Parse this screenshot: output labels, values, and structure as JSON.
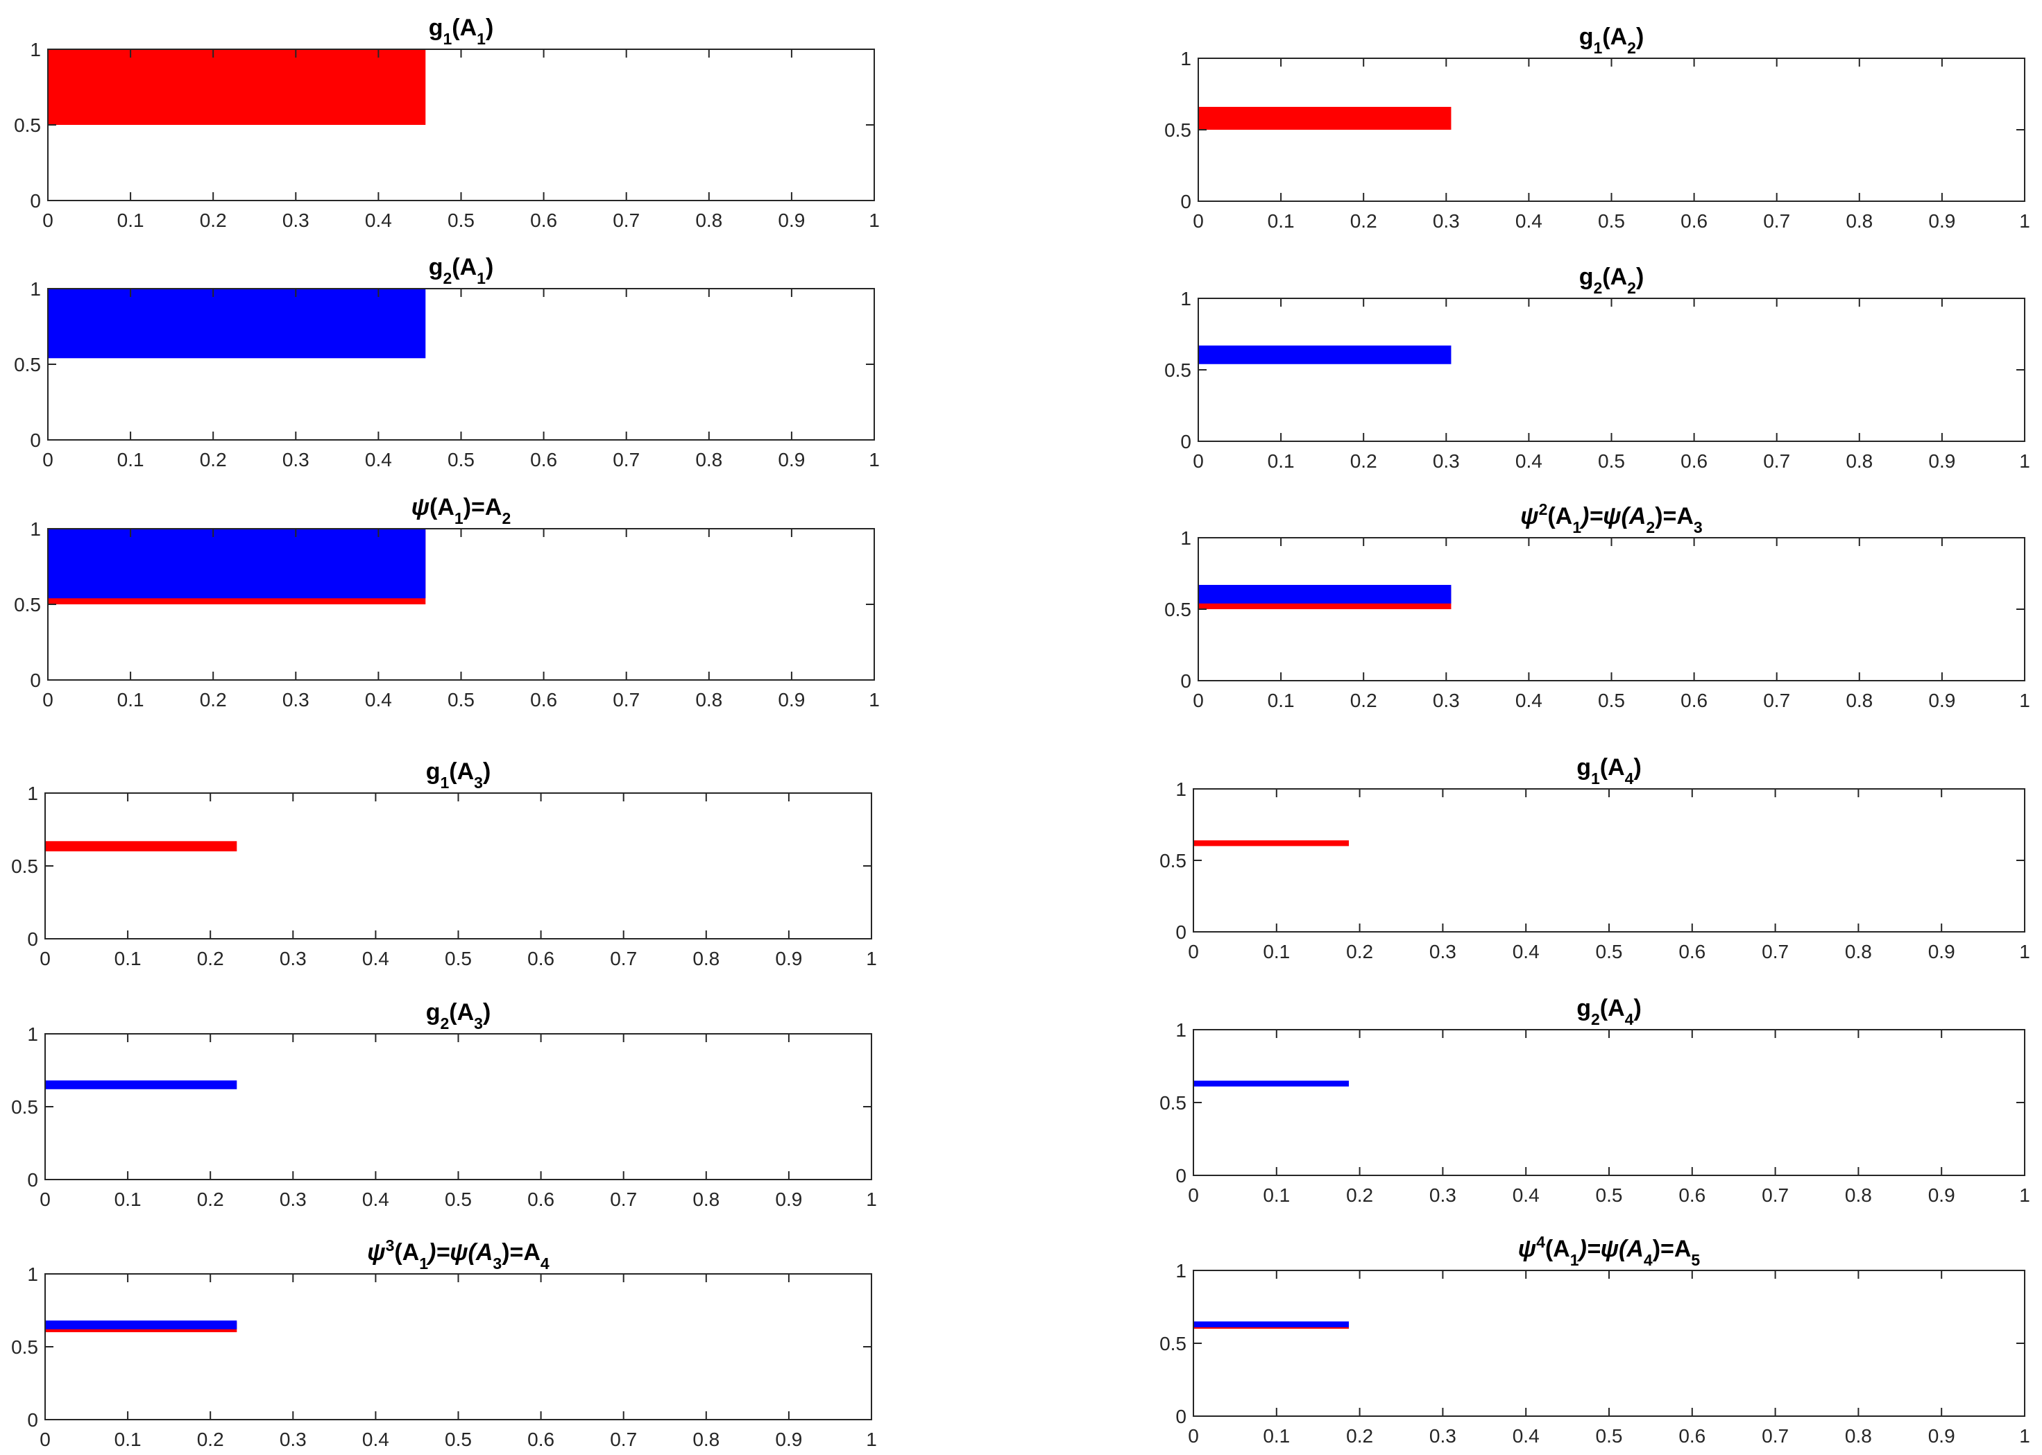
{
  "figure": {
    "colors": {
      "red": "#ff0000",
      "blue": "#0000ff",
      "axes": "#262626",
      "background": "#ffffff"
    }
  },
  "chart_data": [
    {
      "type": "area",
      "title": "g1(A1)",
      "title_parts": [
        "g",
        "1",
        "(A",
        "1",
        ")"
      ],
      "xlim": [
        0,
        1
      ],
      "ylim": [
        0,
        1
      ],
      "xticks": [
        "0",
        "0.1",
        "0.2",
        "0.3",
        "0.4",
        "0.5",
        "0.6",
        "0.7",
        "0.8",
        "0.9",
        "1"
      ],
      "yticks": [
        "0",
        "0.5",
        "1"
      ],
      "series": [
        {
          "color": "red",
          "x": [
            0,
            0.457
          ],
          "y": [
            0.5,
            1.0
          ]
        }
      ]
    },
    {
      "type": "area",
      "title": "g2(A1)",
      "title_parts": [
        "g",
        "2",
        "(A",
        "1",
        ")"
      ],
      "xlim": [
        0,
        1
      ],
      "ylim": [
        0,
        1
      ],
      "xticks": [
        "0",
        "0.1",
        "0.2",
        "0.3",
        "0.4",
        "0.5",
        "0.6",
        "0.7",
        "0.8",
        "0.9",
        "1"
      ],
      "yticks": [
        "0",
        "0.5",
        "1"
      ],
      "series": [
        {
          "color": "blue",
          "x": [
            0,
            0.457
          ],
          "y": [
            0.54,
            1.0
          ]
        }
      ]
    },
    {
      "type": "area",
      "title": "ψ(A1)=A2",
      "title_parts": [
        "ψ",
        "",
        "(A",
        "1",
        ")=A",
        "2",
        ""
      ],
      "xlim": [
        0,
        1
      ],
      "ylim": [
        0,
        1
      ],
      "xticks": [
        "0",
        "0.1",
        "0.2",
        "0.3",
        "0.4",
        "0.5",
        "0.6",
        "0.7",
        "0.8",
        "0.9",
        "1"
      ],
      "yticks": [
        "0",
        "0.5",
        "1"
      ],
      "series": [
        {
          "color": "red",
          "x": [
            0,
            0.457
          ],
          "y": [
            0.5,
            1.0
          ]
        },
        {
          "color": "blue",
          "x": [
            0,
            0.457
          ],
          "y": [
            0.54,
            1.0
          ]
        }
      ]
    },
    {
      "type": "area",
      "title": "g1(A3)",
      "title_parts": [
        "g",
        "1",
        "(A",
        "3",
        ")"
      ],
      "xlim": [
        0,
        1
      ],
      "ylim": [
        0,
        1
      ],
      "xticks": [
        "0",
        "0.1",
        "0.2",
        "0.3",
        "0.4",
        "0.5",
        "0.6",
        "0.7",
        "0.8",
        "0.9",
        "1"
      ],
      "yticks": [
        "0",
        "0.5",
        "1"
      ],
      "series": [
        {
          "color": "red",
          "x": [
            0,
            0.232
          ],
          "y": [
            0.6,
            0.67
          ]
        }
      ]
    },
    {
      "type": "area",
      "title": "g2(A3)",
      "title_parts": [
        "g",
        "2",
        "(A",
        "3",
        ")"
      ],
      "xlim": [
        0,
        1
      ],
      "ylim": [
        0,
        1
      ],
      "xticks": [
        "0",
        "0.1",
        "0.2",
        "0.3",
        "0.4",
        "0.5",
        "0.6",
        "0.7",
        "0.8",
        "0.9",
        "1"
      ],
      "yticks": [
        "0",
        "0.5",
        "1"
      ],
      "series": [
        {
          "color": "blue",
          "x": [
            0,
            0.232
          ],
          "y": [
            0.62,
            0.68
          ]
        }
      ]
    },
    {
      "type": "area",
      "title": "ψ3(A1)=ψ(A3)=A4",
      "title_parts": [
        "ψ",
        "3",
        "(A",
        "1",
        ")=ψ(A",
        "3",
        ")=A",
        "4",
        ""
      ],
      "xlim": [
        0,
        1
      ],
      "ylim": [
        0,
        1
      ],
      "xticks": [
        "0",
        "0.1",
        "0.2",
        "0.3",
        "0.4",
        "0.5",
        "0.6",
        "0.7",
        "0.8",
        "0.9",
        "1"
      ],
      "yticks": [
        "0",
        "0.5",
        "1"
      ],
      "series": [
        {
          "color": "red",
          "x": [
            0,
            0.232
          ],
          "y": [
            0.6,
            0.67
          ]
        },
        {
          "color": "blue",
          "x": [
            0,
            0.232
          ],
          "y": [
            0.62,
            0.68
          ]
        }
      ]
    },
    {
      "type": "area",
      "title": "g1(A2)",
      "title_parts": [
        "g",
        "1",
        "(A",
        "2",
        ")"
      ],
      "xlim": [
        0,
        1
      ],
      "ylim": [
        0,
        1
      ],
      "xticks": [
        "0",
        "0.1",
        "0.2",
        "0.3",
        "0.4",
        "0.5",
        "0.6",
        "0.7",
        "0.8",
        "0.9",
        "1"
      ],
      "yticks": [
        "0",
        "0.5",
        "1"
      ],
      "series": [
        {
          "color": "red",
          "x": [
            0,
            0.306
          ],
          "y": [
            0.5,
            0.66
          ]
        }
      ]
    },
    {
      "type": "area",
      "title": "g2(A2)",
      "title_parts": [
        "g",
        "2",
        "(A",
        "2",
        ")"
      ],
      "xlim": [
        0,
        1
      ],
      "ylim": [
        0,
        1
      ],
      "xticks": [
        "0",
        "0.1",
        "0.2",
        "0.3",
        "0.4",
        "0.5",
        "0.6",
        "0.7",
        "0.8",
        "0.9",
        "1"
      ],
      "yticks": [
        "0",
        "0.5",
        "1"
      ],
      "series": [
        {
          "color": "blue",
          "x": [
            0,
            0.306
          ],
          "y": [
            0.54,
            0.67
          ]
        }
      ]
    },
    {
      "type": "area",
      "title": "ψ2(A1)=ψ(A2)=A3",
      "title_parts": [
        "ψ",
        "2",
        "(A",
        "1",
        ")=ψ(A",
        "2",
        ")=A",
        "3",
        ""
      ],
      "xlim": [
        0,
        1
      ],
      "ylim": [
        0,
        1
      ],
      "xticks": [
        "0",
        "0.1",
        "0.2",
        "0.3",
        "0.4",
        "0.5",
        "0.6",
        "0.7",
        "0.8",
        "0.9",
        "1"
      ],
      "yticks": [
        "0",
        "0.5",
        "1"
      ],
      "series": [
        {
          "color": "red",
          "x": [
            0,
            0.306
          ],
          "y": [
            0.5,
            0.66
          ]
        },
        {
          "color": "blue",
          "x": [
            0,
            0.306
          ],
          "y": [
            0.54,
            0.67
          ]
        }
      ]
    },
    {
      "type": "area",
      "title": "g1(A4)",
      "title_parts": [
        "g",
        "1",
        "(A",
        "4",
        ")"
      ],
      "xlim": [
        0,
        1
      ],
      "ylim": [
        0,
        1
      ],
      "xticks": [
        "0",
        "0.1",
        "0.2",
        "0.3",
        "0.4",
        "0.5",
        "0.6",
        "0.7",
        "0.8",
        "0.9",
        "1"
      ],
      "yticks": [
        "0",
        "0.5",
        "1"
      ],
      "series": [
        {
          "color": "red",
          "x": [
            0,
            0.187
          ],
          "y": [
            0.6,
            0.64
          ]
        }
      ]
    },
    {
      "type": "area",
      "title": "g2(A4)",
      "title_parts": [
        "g",
        "2",
        "(A",
        "4",
        ")"
      ],
      "xlim": [
        0,
        1
      ],
      "ylim": [
        0,
        1
      ],
      "xticks": [
        "0",
        "0.1",
        "0.2",
        "0.3",
        "0.4",
        "0.5",
        "0.6",
        "0.7",
        "0.8",
        "0.9",
        "1"
      ],
      "yticks": [
        "0",
        "0.5",
        "1"
      ],
      "series": [
        {
          "color": "blue",
          "x": [
            0,
            0.187
          ],
          "y": [
            0.61,
            0.65
          ]
        }
      ]
    },
    {
      "type": "area",
      "title": "ψ4(A1)=ψ(A4)=A5",
      "title_parts": [
        "ψ",
        "4",
        "(A",
        "1",
        ")=ψ(A",
        "4",
        ")=A",
        "5",
        ""
      ],
      "xlim": [
        0,
        1
      ],
      "ylim": [
        0,
        1
      ],
      "xticks": [
        "0",
        "0.1",
        "0.2",
        "0.3",
        "0.4",
        "0.5",
        "0.6",
        "0.7",
        "0.8",
        "0.9",
        "1"
      ],
      "yticks": [
        "0",
        "0.5",
        "1"
      ],
      "series": [
        {
          "color": "red",
          "x": [
            0,
            0.187
          ],
          "y": [
            0.6,
            0.64
          ]
        },
        {
          "color": "blue",
          "x": [
            0,
            0.187
          ],
          "y": [
            0.61,
            0.65
          ]
        }
      ]
    }
  ]
}
